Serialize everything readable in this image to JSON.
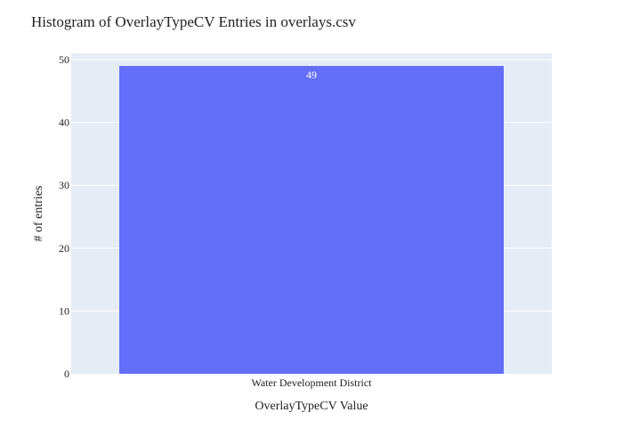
{
  "colors": {
    "plot_background": "#E5ECF6",
    "gridline": "#FFFFFF",
    "bar": "#636EFA",
    "text": "#222222",
    "bar_label": "#FFFFFF"
  },
  "chart_data": {
    "type": "bar",
    "title": "Histogram of OverlayTypeCV Entries in overlays.csv",
    "xlabel": "OverlayTypeCV Value",
    "ylabel": "# of entries",
    "categories": [
      "Water Development District"
    ],
    "values": [
      49
    ],
    "data_labels": [
      "49"
    ],
    "ylim": [
      0,
      51
    ],
    "yticks": [
      0,
      10,
      20,
      30,
      40,
      50
    ],
    "grid": true,
    "legend": "none"
  }
}
